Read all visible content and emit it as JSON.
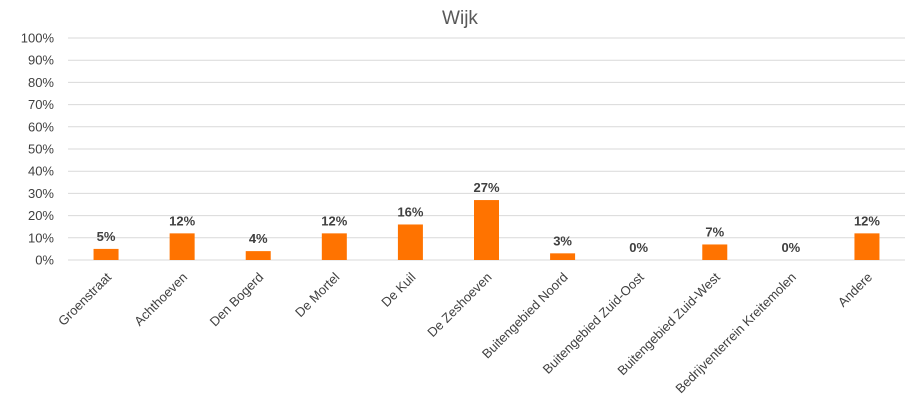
{
  "chart_data": {
    "type": "bar",
    "title": "Wijk",
    "categories": [
      "Groenstraat",
      "Achthoeven",
      "Den Bogerd",
      "De Mortel",
      "De Kuil",
      "De Zeshoeven",
      "Buitengebied Noord",
      "Buitengebied Zuid-Oost",
      "Buitengebied Zuid-West",
      "Bedrijventerrein Kreitemolen",
      "Andere"
    ],
    "values": [
      5,
      12,
      4,
      12,
      16,
      27,
      3,
      0,
      7,
      0,
      12
    ],
    "data_labels": [
      "5%",
      "12%",
      "4%",
      "12%",
      "16%",
      "27%",
      "3%",
      "0%",
      "7%",
      "0%",
      "12%"
    ],
    "y_ticks": [
      "0%",
      "10%",
      "20%",
      "30%",
      "40%",
      "50%",
      "60%",
      "70%",
      "80%",
      "90%",
      "100%"
    ],
    "ylim": [
      0,
      100
    ],
    "grid": true,
    "legend": "none",
    "bar_color": "#ff7300"
  }
}
